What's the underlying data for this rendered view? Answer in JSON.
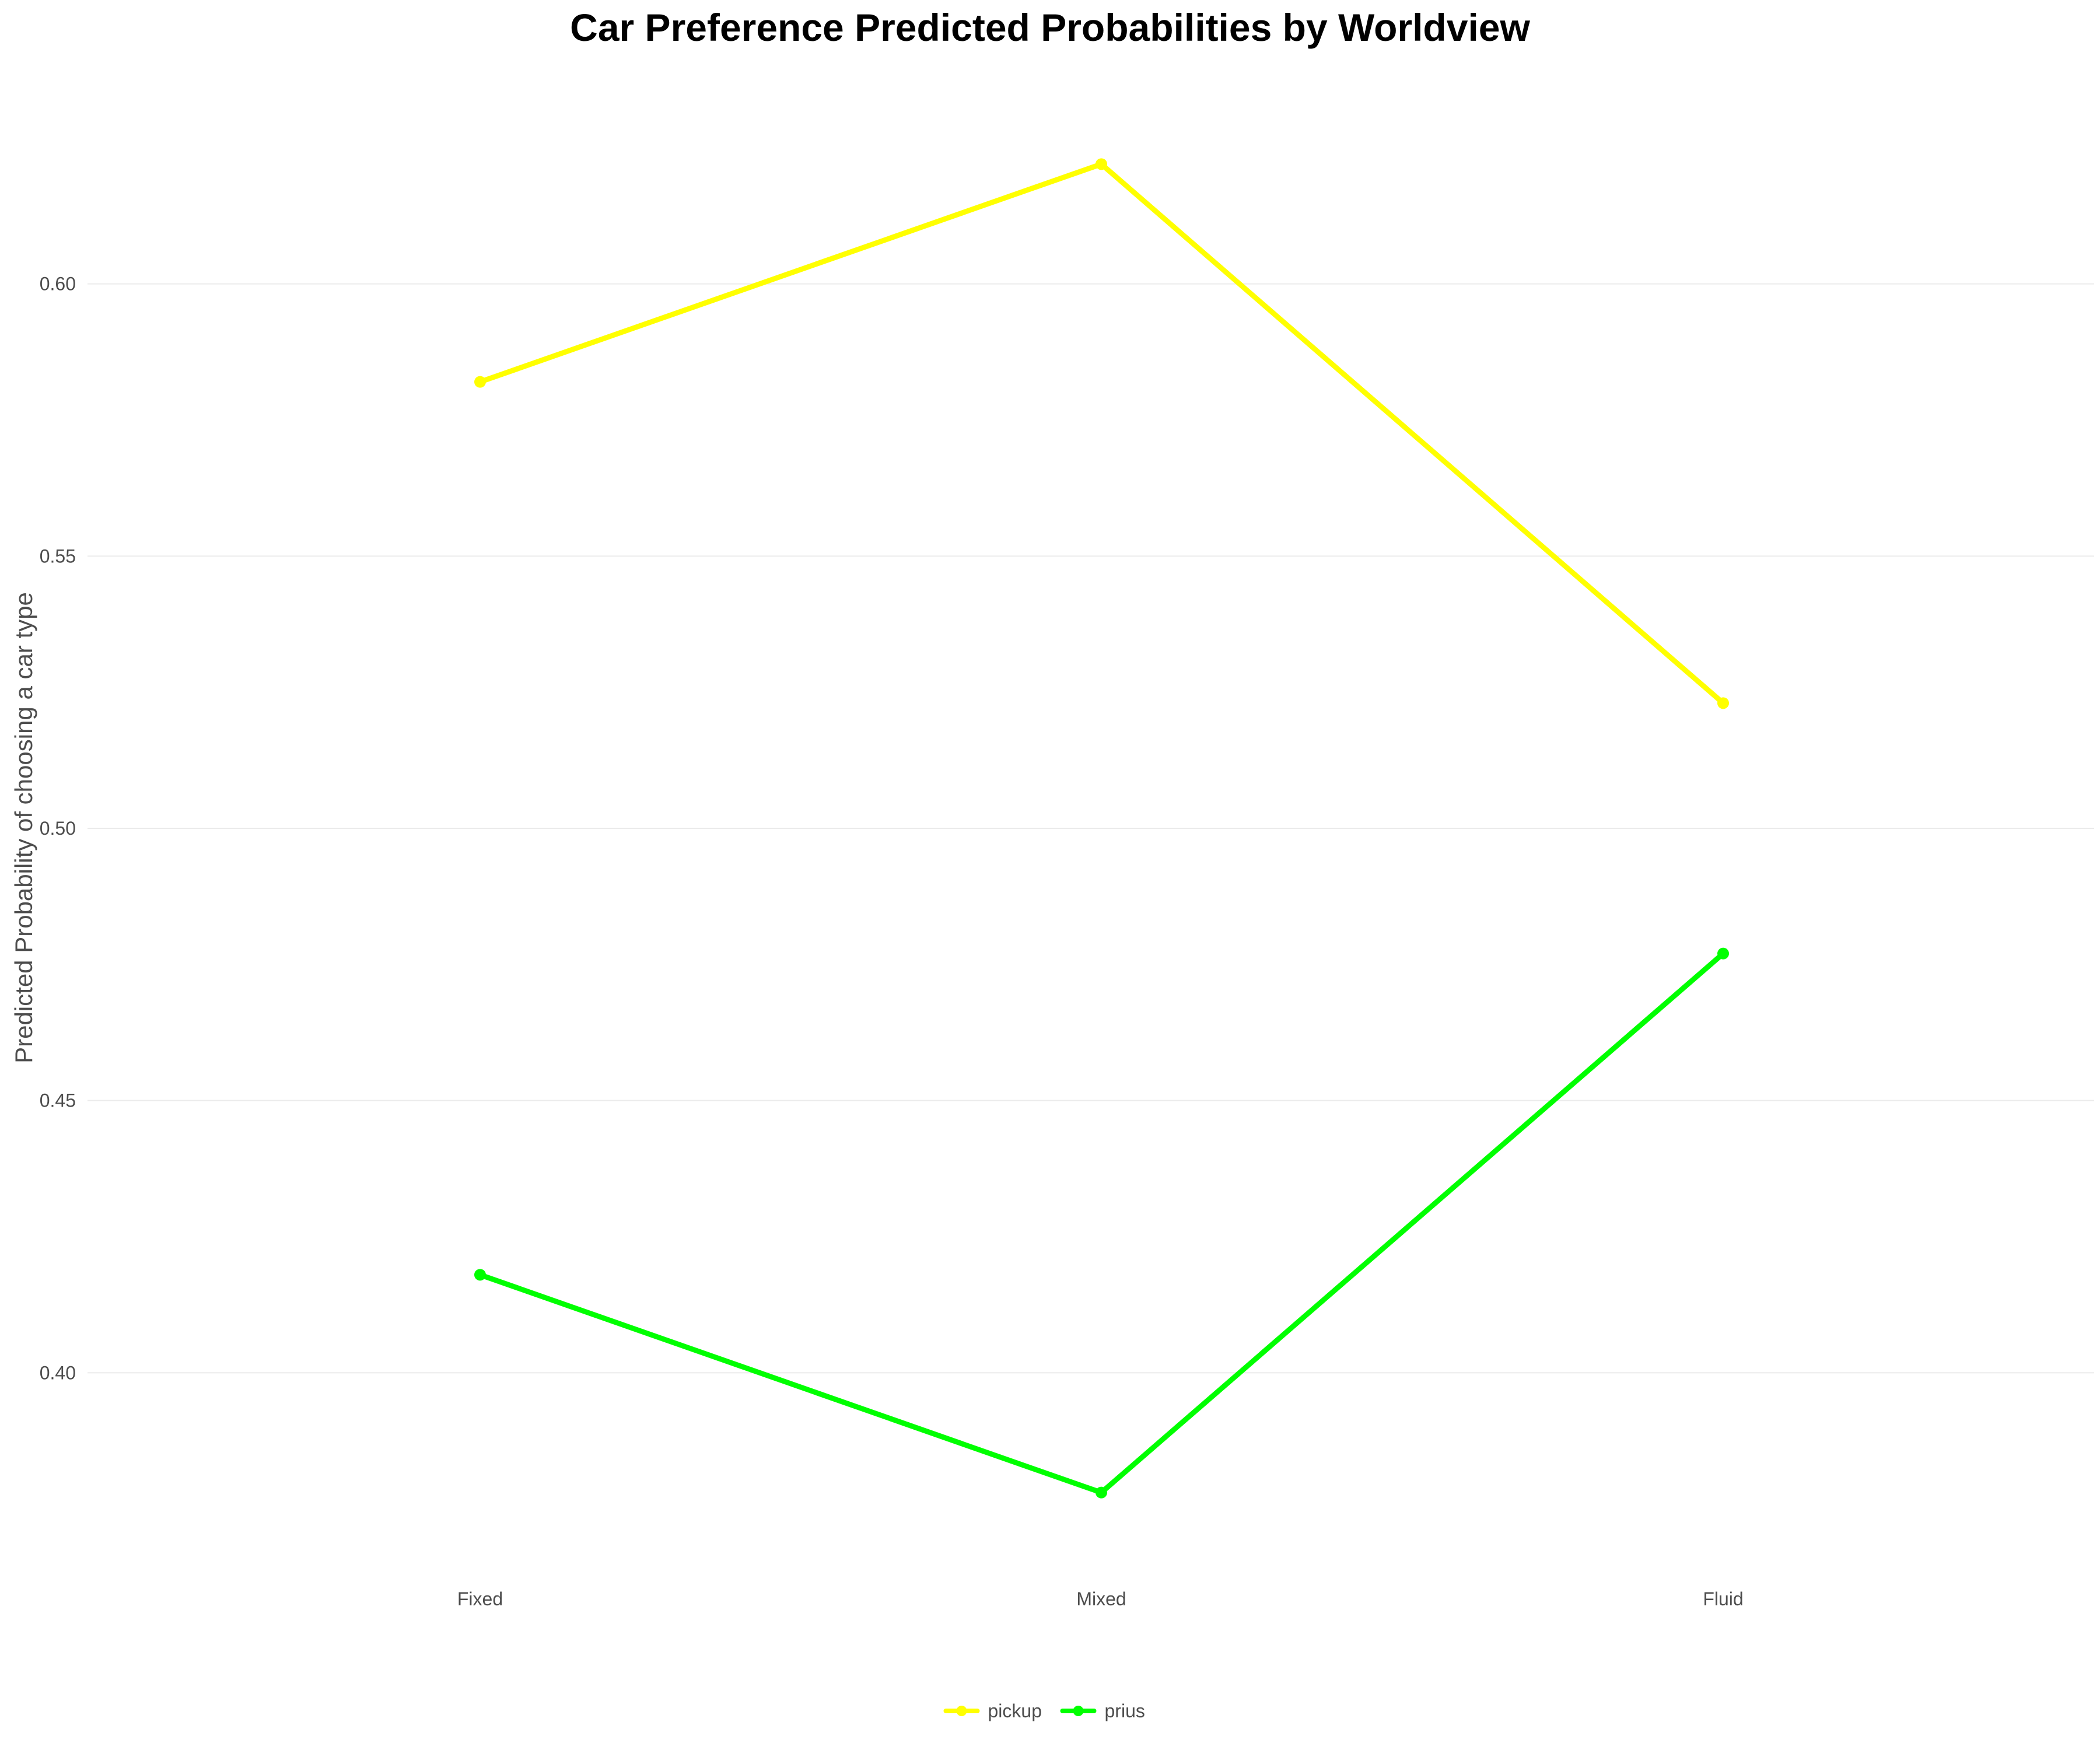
{
  "chart_data": {
    "type": "line",
    "title": "Car Preference Predicted Probabilities by Worldview",
    "xlabel": "",
    "ylabel": "Predicted Probability of choosing a car type",
    "categories": [
      "Fixed",
      "Mixed",
      "Fluid"
    ],
    "series": [
      {
        "name": "pickup",
        "color": "#ffff00",
        "values": [
          0.582,
          0.622,
          0.523
        ]
      },
      {
        "name": "prius",
        "color": "#00ff00",
        "values": [
          0.418,
          0.378,
          0.477
        ]
      }
    ],
    "yticks": [
      0.4,
      0.45,
      0.5,
      0.55,
      0.6
    ],
    "ytick_labels": [
      "0.40",
      "0.45",
      "0.50",
      "0.55",
      "0.60"
    ],
    "ylim": [
      0.365,
      0.635
    ],
    "grid": true,
    "legend_position": "bottom"
  }
}
